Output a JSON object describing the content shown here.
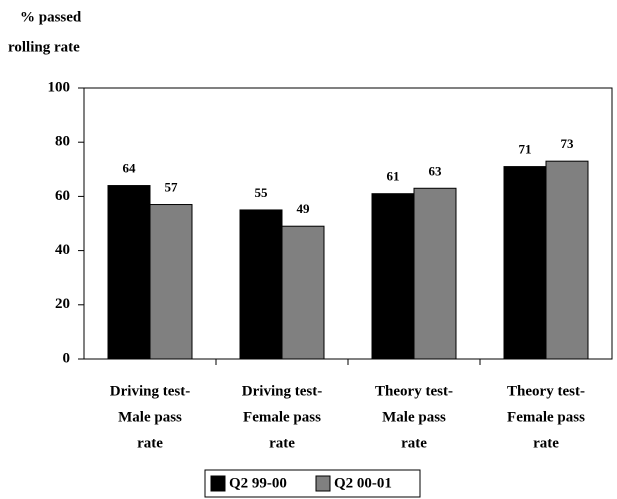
{
  "chart_data": {
    "type": "bar",
    "ylabel": [
      "% passed",
      "rolling rate"
    ],
    "categories": [
      [
        "Driving test-",
        "Male pass",
        "rate"
      ],
      [
        "Driving test-",
        "Female pass",
        "rate"
      ],
      [
        "Theory test-",
        "Male pass",
        "rate"
      ],
      [
        "Theory test-",
        "Female pass",
        "rate"
      ]
    ],
    "series": [
      {
        "name": "Q2 99-00",
        "color": "#000000",
        "values": [
          64,
          55,
          61,
          71
        ]
      },
      {
        "name": "Q2 00-01",
        "color": "#808080",
        "values": [
          57,
          49,
          63,
          73
        ]
      }
    ],
    "ylim": [
      0,
      100
    ],
    "yticks": [
      0,
      20,
      40,
      60,
      80,
      100
    ],
    "legend": "bottom"
  }
}
